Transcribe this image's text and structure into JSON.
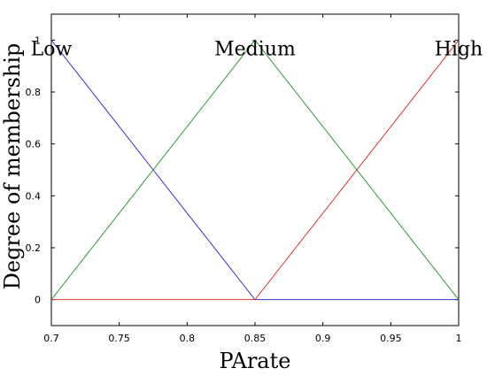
{
  "chart_data": {
    "type": "line",
    "title": "",
    "xlabel": "PArate",
    "ylabel": "Degree of membership",
    "xlim": [
      0.7,
      1.0
    ],
    "ylim": [
      -0.1,
      1.1
    ],
    "x_ticks": [
      0.7,
      0.75,
      0.8,
      0.85,
      0.9,
      0.95,
      1.0
    ],
    "x_tick_labels": [
      "0.7",
      "0.75",
      "0.8",
      "0.85",
      "0.9",
      "0.95",
      "1"
    ],
    "y_ticks": [
      0,
      0.2,
      0.4,
      0.6,
      0.8,
      1.0
    ],
    "y_tick_labels": [
      "0",
      "0.2",
      "0.4",
      "0.6",
      "0.8",
      "1"
    ],
    "grid": false,
    "series": [
      {
        "name": "Low",
        "color": "#3333cc",
        "x": [
          0.7,
          0.85,
          1.0
        ],
        "y": [
          1,
          0,
          0
        ],
        "label_at": [
          0.7,
          1.0
        ]
      },
      {
        "name": "Medium",
        "color": "#339933",
        "x": [
          0.7,
          0.85,
          1.0
        ],
        "y": [
          0,
          1,
          0
        ],
        "label_at": [
          0.85,
          1.0
        ]
      },
      {
        "name": "High",
        "color": "#dd3333",
        "x": [
          0.7,
          0.85,
          1.0
        ],
        "y": [
          0,
          0,
          1
        ],
        "label_at": [
          1.0,
          1.0
        ]
      }
    ]
  }
}
